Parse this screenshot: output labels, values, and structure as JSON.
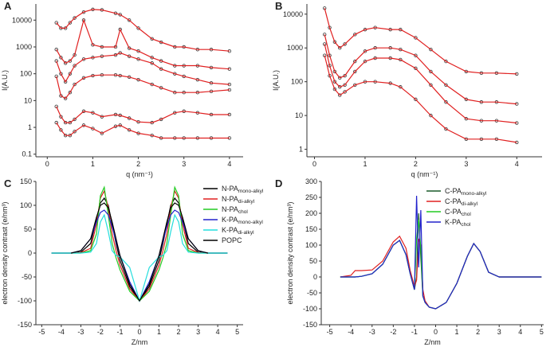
{
  "chart_data": [
    {
      "type": "line",
      "panel": "A",
      "log_y": true,
      "markers": true,
      "marker_color": "#333333",
      "xlabel": "q (nm⁻¹)",
      "ylabel": "I(A.U.)",
      "xlim": [
        -0.25,
        4.3
      ],
      "xticks": [
        0,
        1,
        2,
        3,
        4
      ],
      "ylim": [
        0.08,
        40000
      ],
      "yticks": [
        0.1,
        1,
        10,
        100,
        1000,
        10000
      ],
      "x": [
        0.2,
        0.3,
        0.4,
        0.5,
        0.6,
        0.8,
        1,
        1.2,
        1.5,
        1.6,
        1.8,
        2,
        2.3,
        2.5,
        2.8,
        3,
        3.3,
        3.6,
        4
      ],
      "series": [
        {
          "color": "#e02020",
          "values": [
            8000,
            5000,
            5000,
            8000,
            12000,
            20000,
            25000,
            24000,
            18000,
            16000,
            10000,
            5000,
            2000,
            1500,
            1000,
            1000,
            800,
            800,
            700
          ]
        },
        {
          "color": "#e02020",
          "values": [
            800,
            400,
            250,
            300,
            500,
            10000,
            1200,
            1000,
            1000,
            4500,
            900,
            700,
            400,
            300,
            200,
            200,
            200,
            170,
            150
          ]
        },
        {
          "color": "#e02020",
          "values": [
            300,
            100,
            50,
            100,
            200,
            350,
            400,
            450,
            500,
            600,
            450,
            350,
            250,
            150,
            100,
            80,
            60,
            45,
            40
          ]
        },
        {
          "color": "#e02020",
          "values": [
            80,
            15,
            12,
            20,
            40,
            70,
            85,
            90,
            90,
            85,
            75,
            60,
            40,
            30,
            20,
            20,
            20,
            22,
            25
          ]
        },
        {
          "color": "#e02020",
          "values": [
            6,
            2.5,
            1.5,
            1.5,
            2,
            4,
            3.5,
            2.5,
            3,
            2.8,
            2.2,
            1.6,
            1.5,
            2,
            3.5,
            4,
            3.5,
            3,
            3
          ]
        },
        {
          "color": "#e02020",
          "values": [
            1.5,
            0.8,
            0.5,
            0.5,
            0.7,
            1.2,
            0.9,
            0.6,
            1.1,
            1.2,
            0.8,
            0.6,
            0.5,
            0.4,
            0.4,
            0.4,
            0.4,
            0.4,
            0.4
          ]
        }
      ]
    },
    {
      "type": "line",
      "panel": "B",
      "log_y": true,
      "markers": true,
      "marker_color": "#333333",
      "xlabel": "q (nm⁻¹)",
      "ylabel": "I(A.U.)",
      "xlim": [
        -0.15,
        4.5
      ],
      "xticks": [
        0,
        1,
        2,
        3,
        4
      ],
      "ylim": [
        0.6,
        20000
      ],
      "yticks": [
        1,
        10,
        100,
        1000,
        10000
      ],
      "x": [
        0.2,
        0.3,
        0.4,
        0.5,
        0.6,
        0.8,
        1,
        1.2,
        1.5,
        1.7,
        2,
        2.3,
        2.6,
        3,
        3.3,
        3.6,
        4
      ],
      "series": [
        {
          "color": "#e02020",
          "values": [
            15000,
            4000,
            1500,
            1000,
            1300,
            2500,
            3500,
            4000,
            3500,
            3500,
            2000,
            900,
            400,
            200,
            180,
            180,
            170
          ]
        },
        {
          "color": "#e02020",
          "values": [
            2500,
            600,
            200,
            130,
            150,
            400,
            800,
            1000,
            1000,
            900,
            600,
            200,
            80,
            30,
            25,
            25,
            22
          ]
        },
        {
          "color": "#e02020",
          "values": [
            1300,
            300,
            100,
            70,
            80,
            200,
            400,
            500,
            500,
            450,
            250,
            80,
            25,
            8,
            7,
            7,
            6
          ]
        },
        {
          "color": "#e02020",
          "values": [
            600,
            150,
            60,
            40,
            50,
            80,
            100,
            100,
            90,
            70,
            30,
            10,
            4,
            2,
            2,
            2,
            1.6
          ]
        }
      ]
    },
    {
      "type": "line",
      "panel": "C",
      "log_y": false,
      "markers": false,
      "xlabel": "Z/nm",
      "ylabel": "electron density contrast (e/nm³)",
      "xlim": [
        -5.3,
        5.3
      ],
      "xticks": [
        -5,
        -4,
        -3,
        -2,
        -1,
        0,
        1,
        2,
        3,
        4,
        5
      ],
      "ylim": [
        -150,
        150
      ],
      "yticks": [
        -150,
        -100,
        -50,
        0,
        50,
        100,
        150
      ],
      "x": [
        -4.5,
        -3.5,
        -3,
        -2.5,
        -2.2,
        -2,
        -1.8,
        -1.6,
        -1.4,
        -1.2,
        -1,
        -0.5,
        0,
        0.5,
        1,
        1.2,
        1.4,
        1.6,
        1.8,
        2,
        2.2,
        2.5,
        3,
        3.5,
        4.5
      ],
      "series": [
        {
          "name": "N-PA",
          "subscript": "mono-alkyl",
          "color": "#000000",
          "values": [
            0,
            0,
            2,
            20,
            70,
            105,
            115,
            100,
            60,
            20,
            -15,
            -70,
            -100,
            -70,
            -15,
            20,
            60,
            100,
            115,
            105,
            70,
            20,
            2,
            0,
            0
          ]
        },
        {
          "name": "N-PA",
          "subscript": "di-alkyl",
          "color": "#e02020",
          "values": [
            0,
            0,
            1,
            10,
            60,
            115,
            130,
            95,
            40,
            5,
            -25,
            -75,
            -100,
            -75,
            -25,
            5,
            40,
            95,
            130,
            115,
            60,
            10,
            1,
            0,
            0
          ]
        },
        {
          "name": "N-PA",
          "subscript": "chol",
          "color": "#22cc22",
          "values": [
            0,
            0,
            0,
            5,
            40,
            120,
            138,
            80,
            20,
            -10,
            -35,
            -80,
            -100,
            -80,
            -35,
            -10,
            20,
            80,
            138,
            120,
            40,
            5,
            0,
            0,
            0
          ]
        },
        {
          "name": "K-PA",
          "subscript": "mono-alkyl",
          "color": "#2222cc",
          "values": [
            0,
            0,
            5,
            30,
            65,
            85,
            90,
            80,
            55,
            25,
            -5,
            -60,
            -100,
            -60,
            -5,
            25,
            55,
            80,
            90,
            85,
            65,
            30,
            5,
            0,
            0
          ]
        },
        {
          "name": "K-PA",
          "subscript": "di-alkyl",
          "color": "#22dddd",
          "values": [
            0,
            0,
            0,
            2,
            20,
            65,
            80,
            45,
            5,
            -5,
            -8,
            -30,
            -100,
            -30,
            -8,
            -5,
            5,
            45,
            80,
            65,
            20,
            2,
            0,
            0,
            0
          ]
        },
        {
          "name": "POPC",
          "color": "#000000",
          "values": [
            null,
            0,
            5,
            30,
            75,
            100,
            105,
            95,
            65,
            30,
            -5,
            -65,
            -100,
            -65,
            -5,
            30,
            65,
            95,
            105,
            100,
            75,
            30,
            5,
            0,
            null
          ]
        }
      ]
    },
    {
      "type": "line",
      "panel": "D",
      "log_y": false,
      "markers": false,
      "xlabel": "Z/nm",
      "ylabel": "electron density contrast (e/nm³)",
      "xlim": [
        -5.4,
        5.1
      ],
      "xticks": [
        -5,
        -4,
        -3,
        -2,
        -1,
        0,
        1,
        2,
        3,
        4,
        5
      ],
      "ylim": [
        -150,
        300
      ],
      "yticks": [
        -150,
        -100,
        -50,
        0,
        50,
        100,
        150,
        200,
        250,
        300
      ],
      "x": [
        -4.5,
        -4,
        -3.8,
        -3.5,
        -3,
        -2.5,
        -2,
        -1.7,
        -1.4,
        -1.2,
        -1,
        -0.9,
        -0.8,
        -0.7,
        -0.6,
        -0.5,
        -0.3,
        0,
        0.5,
        1,
        1.5,
        1.8,
        2.1,
        2.5,
        3,
        4,
        5
      ],
      "series": [
        {
          "name": "C-PA",
          "subscript": "mono-alkyl",
          "color": "#1a5a2a",
          "values": [
            0,
            0,
            0,
            2,
            10,
            40,
            100,
            115,
            70,
            10,
            -40,
            0,
            200,
            60,
            -60,
            -80,
            -95,
            -100,
            -80,
            -20,
            65,
            105,
            80,
            15,
            0,
            0,
            0
          ]
        },
        {
          "name": "C-PA",
          "subscript": "di-alkyl",
          "color": "#e02020",
          "values": [
            0,
            5,
            20,
            20,
            22,
            50,
            110,
            128,
            90,
            20,
            -30,
            -10,
            120,
            100,
            -40,
            -75,
            -95,
            -100,
            -80,
            -20,
            65,
            105,
            80,
            15,
            0,
            0,
            0
          ]
        },
        {
          "name": "C-PA",
          "subscript": "chol",
          "color": "#22cc22",
          "values": [
            0,
            0,
            0,
            2,
            10,
            40,
            100,
            115,
            70,
            10,
            -40,
            120,
            180,
            90,
            -60,
            -80,
            -95,
            -100,
            -80,
            -20,
            65,
            105,
            80,
            15,
            0,
            0,
            0
          ]
        },
        {
          "name": "K-PA",
          "subscript": "chol",
          "color": "#2222cc",
          "values": [
            0,
            0,
            0,
            2,
            10,
            40,
            100,
            115,
            70,
            10,
            -40,
            255,
            30,
            210,
            -60,
            -80,
            -95,
            -100,
            -80,
            -20,
            65,
            105,
            80,
            15,
            0,
            0,
            0
          ]
        }
      ]
    }
  ]
}
